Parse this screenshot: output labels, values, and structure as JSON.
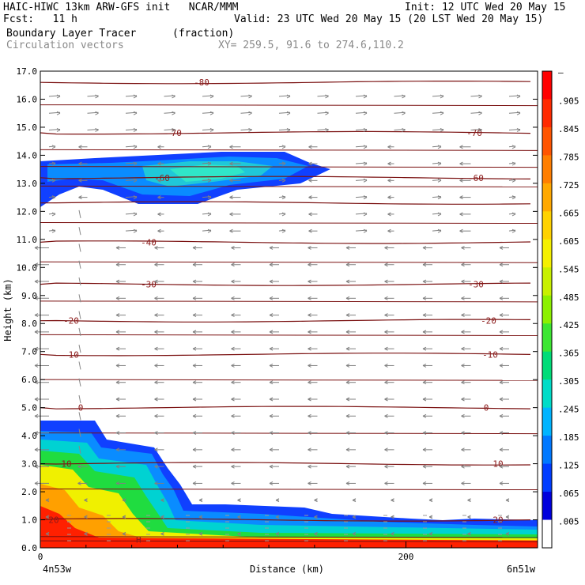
{
  "header": {
    "line1_left": "HAIC-HIWC 13km ARW-GFS init   NCAR/MMM",
    "line1_right": "Init: 12 UTC Wed 20 May 15",
    "line2_left": "Fcst:   11 h",
    "line2_right": "Valid: 23 UTC Wed 20 May 15 (20 LST Wed 20 May 15)",
    "field_name": "Boundary Layer Tracer",
    "field_units": "(fraction)",
    "vector_name": "Circulation vectors",
    "xy_text": "XY= 259.5, 91.6 to 274.6,110.2"
  },
  "chart_data": {
    "type": "cross-section",
    "ylabel": "Height (km)",
    "xlabel": "Distance (km)",
    "ylim": [
      0,
      17
    ],
    "y_ticks": [
      "0.0",
      "1.0",
      "2.0",
      "3.0",
      "4.0",
      "5.0",
      "6.0",
      "7.0",
      "8.0",
      "9.0",
      "10.0",
      "11.0",
      "12.0",
      "13.0",
      "14.0",
      "15.0",
      "16.0",
      "17.0"
    ],
    "xlim": [
      0,
      272
    ],
    "x_ticks": [
      {
        "value": 0,
        "label": "0"
      },
      {
        "value": 200,
        "label": "200"
      }
    ],
    "left_endpoint": "4n53w",
    "right_endpoint": "6n51w",
    "temperature_contours": [
      {
        "label": "-80",
        "height": 16.6
      },
      {
        "label": "-70",
        "height": 14.8
      },
      {
        "label": "-60",
        "height": 13.2
      },
      {
        "label": "-50",
        "height": 12.3
      },
      {
        "label": "-40",
        "height": 10.9
      },
      {
        "label": "-30",
        "height": 9.4
      },
      {
        "label": "-20",
        "height": 8.1
      },
      {
        "label": "-10",
        "height": 6.9
      },
      {
        "label": "0",
        "height": 5.0
      },
      {
        "label": "10",
        "height": 3.0
      },
      {
        "label": "20",
        "height": 1.0
      }
    ],
    "low_marker": "H",
    "colorbar": {
      "labels": [
        "–",
        ".905",
        ".845",
        ".785",
        ".725",
        ".665",
        ".605",
        ".545",
        ".485",
        ".425",
        ".365",
        ".305",
        ".245",
        ".185",
        ".125",
        ".065",
        ".005"
      ],
      "colors": [
        "#ff0000",
        "#ff2a00",
        "#ff5400",
        "#ff7e00",
        "#ffa800",
        "#ffd200",
        "#f5f000",
        "#c8f000",
        "#8cf000",
        "#3ce632",
        "#00dc78",
        "#00dcc8",
        "#00b4ff",
        "#0078ff",
        "#003cff",
        "#0000dc",
        "#ffffff"
      ]
    }
  }
}
